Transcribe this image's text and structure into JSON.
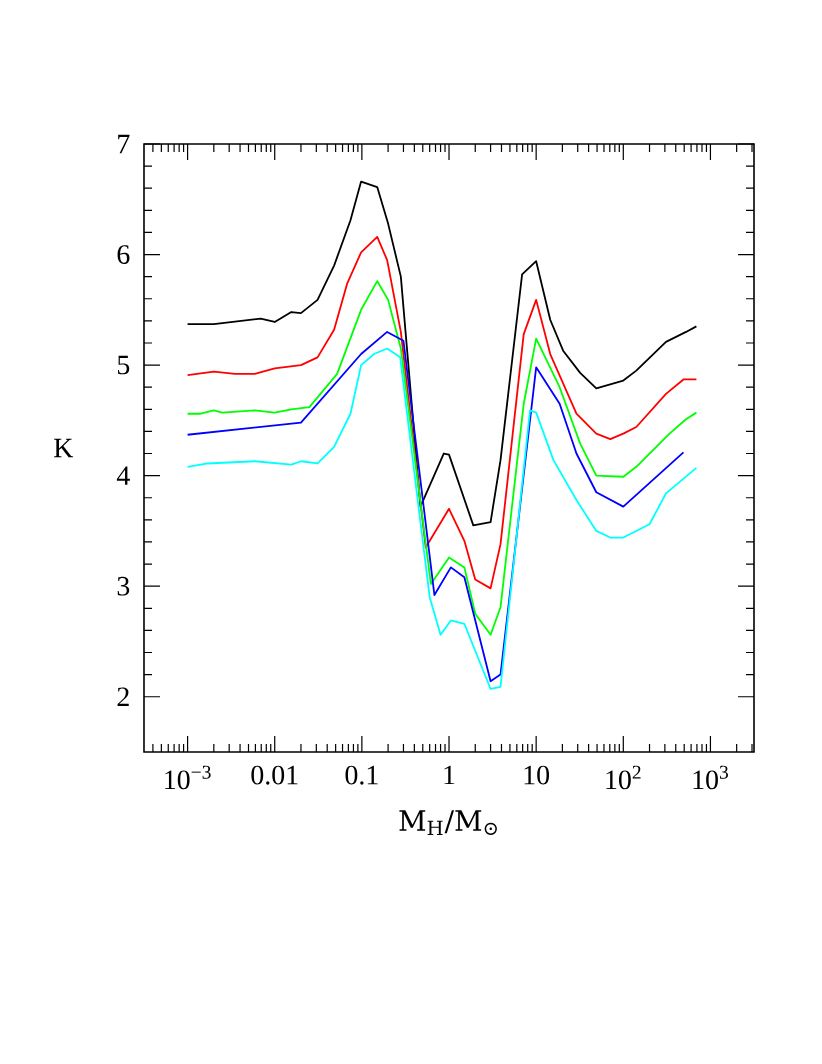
{
  "chart_data": {
    "type": "line",
    "xlabel": "M$_{H}$/M$_{⊙}$",
    "ylabel": "K",
    "log": "x",
    "marker": "none",
    "line_style": "solid",
    "xlim": [
      0.000316,
      3162
    ],
    "ylim": [
      1.5,
      7
    ],
    "xticks": [
      {
        "value": 0.001,
        "label": "10$^{−3}$"
      },
      0.01,
      0.1,
      1,
      10,
      {
        "value": 100,
        "label": "10$^{2}$"
      },
      {
        "value": 1000,
        "label": "10$^{3}$"
      }
    ],
    "yticks": [
      2,
      3,
      4,
      5,
      6,
      7
    ],
    "series": [
      {
        "color": "#000000",
        "x": [
          0.001,
          0.002,
          0.0069,
          0.01,
          0.0155,
          0.02,
          0.031,
          0.048,
          0.074,
          0.098,
          0.15,
          0.2,
          0.28,
          0.47,
          0.87,
          1,
          1.9,
          3,
          3.9,
          6.9,
          10,
          14.5,
          20.4,
          32,
          49,
          100,
          141,
          309,
          525,
          690
        ],
        "values": [
          5.37,
          5.37,
          5.42,
          5.39,
          5.48,
          5.47,
          5.59,
          5.9,
          6.31,
          6.66,
          6.61,
          6.28,
          5.8,
          3.72,
          4.2,
          4.19,
          3.55,
          3.58,
          4.14,
          5.82,
          5.94,
          5.41,
          5.13,
          4.93,
          4.79,
          4.86,
          4.95,
          5.21,
          5.3,
          5.35
        ]
      },
      {
        "color": "#ff0000",
        "x": [
          0.001,
          0.002,
          0.0035,
          0.0059,
          0.01,
          0.02,
          0.031,
          0.048,
          0.068,
          0.098,
          0.15,
          0.195,
          0.28,
          0.54,
          1,
          1.5,
          2,
          3,
          3.9,
          7.2,
          10,
          14.5,
          29,
          49,
          71,
          100,
          141,
          309,
          490,
          690
        ],
        "values": [
          4.91,
          4.94,
          4.92,
          4.92,
          4.97,
          5.0,
          5.07,
          5.32,
          5.74,
          6.02,
          6.16,
          5.95,
          5.3,
          3.35,
          3.7,
          3.41,
          3.06,
          2.98,
          3.38,
          5.28,
          5.59,
          5.1,
          4.56,
          4.38,
          4.33,
          4.38,
          4.44,
          4.74,
          4.87,
          4.87
        ]
      },
      {
        "color": "#00ff00",
        "x": [
          0.001,
          0.00141,
          0.002,
          0.0025,
          0.0059,
          0.01,
          0.0155,
          0.025,
          0.052,
          0.098,
          0.15,
          0.2,
          0.28,
          0.62,
          1,
          1.5,
          2,
          3,
          3.9,
          7.2,
          10,
          18.6,
          32,
          49,
          100,
          141,
          200,
          339,
          525,
          690
        ],
        "values": [
          4.56,
          4.56,
          4.59,
          4.57,
          4.59,
          4.57,
          4.6,
          4.62,
          4.92,
          5.5,
          5.76,
          5.59,
          5.15,
          3.02,
          3.26,
          3.17,
          2.75,
          2.56,
          2.81,
          4.65,
          5.24,
          4.8,
          4.29,
          4.0,
          3.99,
          4.08,
          4.2,
          4.38,
          4.51,
          4.57
        ]
      },
      {
        "color": "#0000ff",
        "x": [
          0.001,
          0.02,
          0.098,
          0.195,
          0.3,
          0.68,
          1.05,
          1.5,
          3,
          3.9,
          10,
          18.6,
          29,
          49,
          100,
          490
        ],
        "values": [
          4.37,
          4.48,
          5.1,
          5.3,
          5.22,
          2.92,
          3.17,
          3.08,
          2.14,
          2.2,
          4.98,
          4.65,
          4.2,
          3.85,
          3.72,
          4.21
        ]
      },
      {
        "color": "#00ffff",
        "x": [
          0.001,
          0.0017,
          0.0059,
          0.0155,
          0.02,
          0.031,
          0.048,
          0.074,
          0.098,
          0.138,
          0.195,
          0.275,
          0.6,
          0.8,
          1.05,
          1.5,
          3,
          3.9,
          8.5,
          10,
          15.8,
          29,
          49,
          71,
          100,
          200,
          309,
          690
        ],
        "values": [
          4.08,
          4.11,
          4.13,
          4.1,
          4.13,
          4.11,
          4.26,
          4.56,
          5.0,
          5.1,
          5.15,
          5.07,
          2.9,
          2.56,
          2.69,
          2.66,
          2.07,
          2.09,
          4.59,
          4.57,
          4.14,
          3.78,
          3.5,
          3.44,
          3.44,
          3.56,
          3.84,
          4.07
        ]
      }
    ]
  }
}
